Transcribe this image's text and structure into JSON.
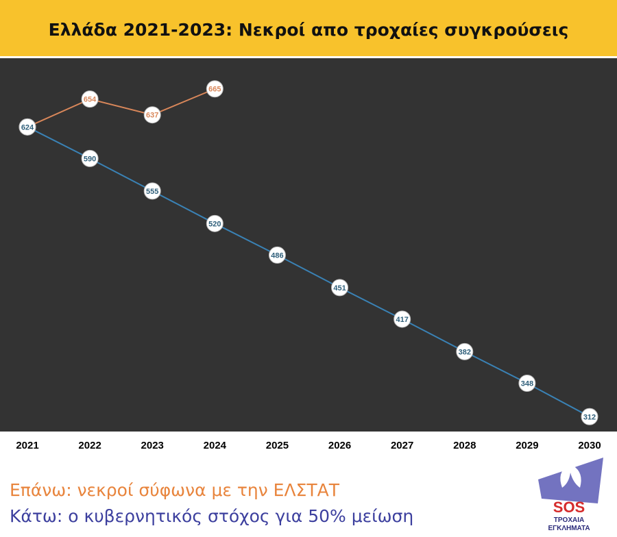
{
  "chart_data": {
    "type": "line",
    "title": "Ελλάδα 2021-2023: Νεκροί απο τροχαίες συγκρούσεις",
    "categories": [
      "2021",
      "2022",
      "2023",
      "2024",
      "2025",
      "2026",
      "2027",
      "2028",
      "2029",
      "2030"
    ],
    "series": [
      {
        "name": "Επάνω: νεκροί σύφωνα με την ΕΛΣΤΑΤ",
        "color": "#d9875a",
        "values": [
          624,
          654,
          637,
          665,
          null,
          null,
          null,
          null,
          null,
          null
        ]
      },
      {
        "name": "Κάτω: ο κυβερνητικός στόχος για 50% μείωση",
        "color": "#3a82b5",
        "values": [
          624,
          590,
          555,
          520,
          486,
          451,
          417,
          382,
          348,
          312
        ]
      }
    ],
    "ylim": [
      296,
      698
    ],
    "logo": {
      "name": "SOS",
      "line1": "ΤΡΟΧΑΙΑ",
      "line2": "ΕΓΚΛΗΜΑΤΑ"
    }
  }
}
